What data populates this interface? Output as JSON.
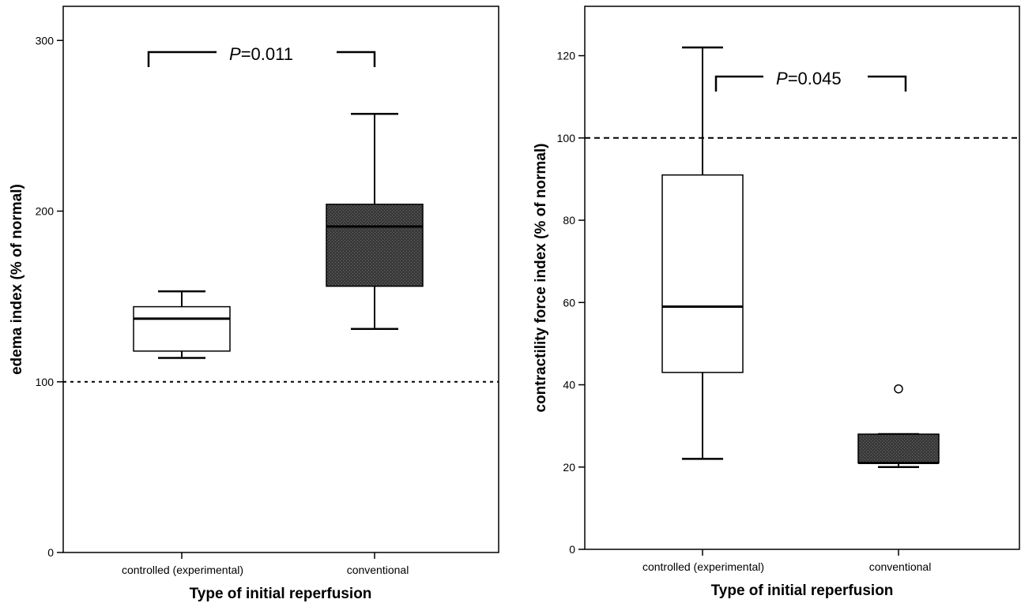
{
  "chart_data": [
    {
      "type": "box",
      "xlabel": "Type of initial reperfusion",
      "ylabel": "edema index (% of normal)",
      "ylim": [
        0,
        320
      ],
      "yticks": [
        0,
        100,
        200,
        300
      ],
      "reference_line": 100,
      "categories": [
        "controlled (experimental)",
        "conventional"
      ],
      "boxes": [
        {
          "category": "controlled (experimental)",
          "min": 114,
          "q1": 118,
          "median": 137,
          "q3": 144,
          "max": 153,
          "outliers": [],
          "fill": "#ffffff"
        },
        {
          "category": "conventional",
          "min": 131,
          "q1": 156,
          "median": 191,
          "q3": 204,
          "max": 257,
          "outliers": [],
          "fill": "#3a3a3a"
        }
      ],
      "annotation": {
        "p_italic": "P",
        "p_value": "=0.011"
      }
    },
    {
      "type": "box",
      "xlabel": "Type of initial reperfusion",
      "ylabel": "contractility force index (% of normal)",
      "ylim": [
        0,
        132
      ],
      "yticks": [
        0,
        20,
        40,
        60,
        80,
        100,
        120
      ],
      "reference_line": 100,
      "categories": [
        "controlled (experimental)",
        "conventional"
      ],
      "boxes": [
        {
          "category": "controlled (experimental)",
          "min": 22,
          "q1": 43,
          "median": 59,
          "q3": 91,
          "max": 122,
          "outliers": [],
          "fill": "#ffffff"
        },
        {
          "category": "conventional",
          "min": 20,
          "q1": 21,
          "median": 21,
          "q3": 28,
          "max": 28,
          "outliers": [
            39
          ],
          "fill": "#3a3a3a"
        }
      ],
      "annotation": {
        "p_italic": "P",
        "p_value": "=0.045"
      }
    }
  ]
}
